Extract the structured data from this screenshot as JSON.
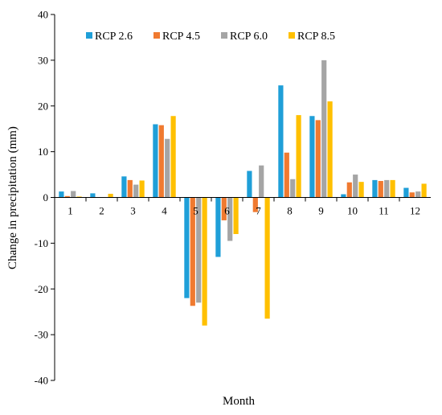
{
  "chart_data": {
    "type": "bar",
    "title": "",
    "xlabel": "Month",
    "ylabel": "Change in precipitation (mm)",
    "ylim": [
      -40,
      40
    ],
    "yticks": [
      -40,
      -30,
      -20,
      -10,
      0,
      10,
      20,
      30,
      40
    ],
    "grid": false,
    "legend_position": "top-left",
    "categories": [
      "1",
      "2",
      "3",
      "4",
      "5",
      "6",
      "7",
      "8",
      "9",
      "10",
      "11",
      "12"
    ],
    "series": [
      {
        "name": "RCP 2.6",
        "color": "#1f9fd8",
        "values": [
          1.3,
          0.9,
          4.6,
          16.0,
          -22.0,
          -13.0,
          5.8,
          24.5,
          17.8,
          0.7,
          3.8,
          2.1
        ]
      },
      {
        "name": "RCP 4.5",
        "color": "#f07a30",
        "values": [
          0.3,
          0.0,
          3.8,
          15.8,
          -23.7,
          -5.0,
          -3.2,
          9.8,
          16.9,
          3.3,
          3.6,
          1.1
        ]
      },
      {
        "name": "RCP 6.0",
        "color": "#a5a5a5",
        "values": [
          1.4,
          0.0,
          2.8,
          12.8,
          -23.0,
          -9.5,
          7.0,
          4.0,
          30.0,
          5.0,
          3.8,
          1.3
        ]
      },
      {
        "name": "RCP 8.5",
        "color": "#ffc000",
        "values": [
          0.2,
          0.8,
          3.7,
          17.8,
          -28.0,
          -8.0,
          -26.5,
          18.0,
          21.0,
          3.4,
          3.8,
          3.0
        ]
      }
    ]
  }
}
